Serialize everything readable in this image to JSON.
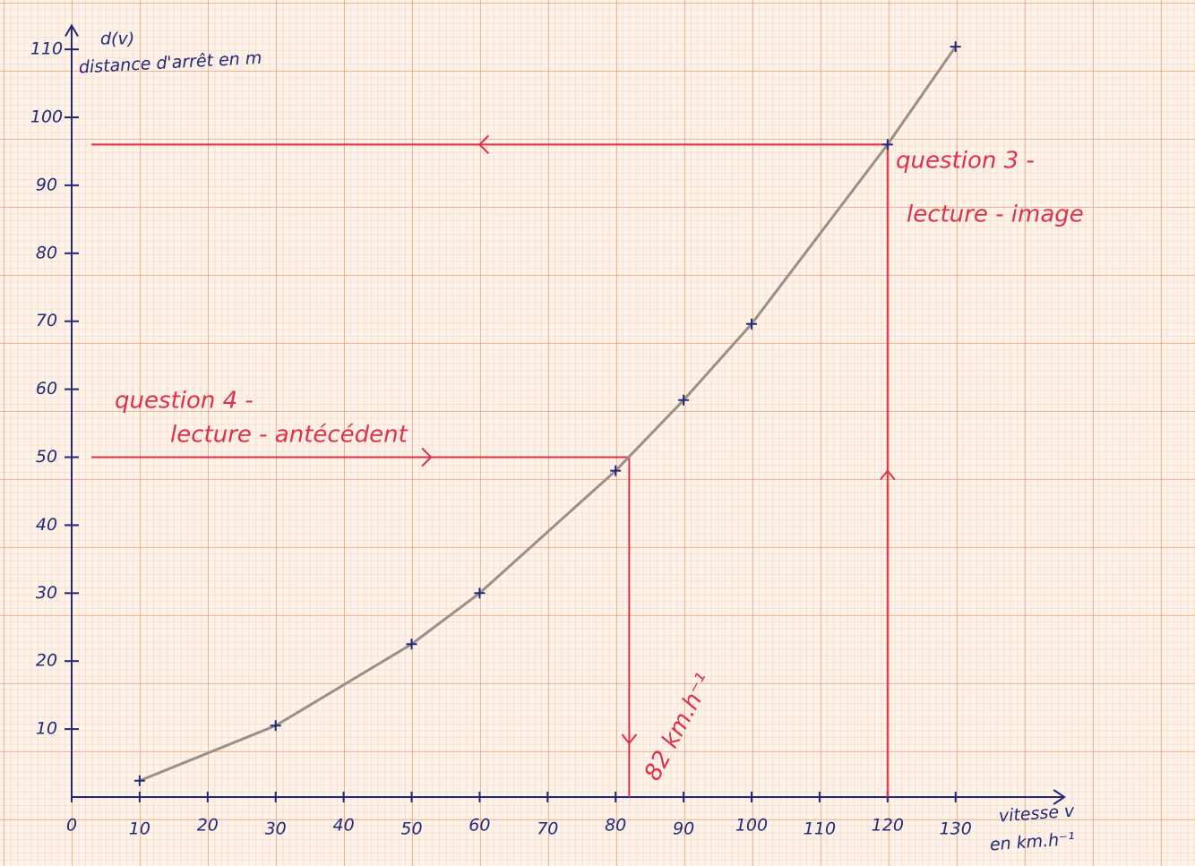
{
  "chart_data": {
    "type": "line",
    "y_label": [
      "d(v)",
      "distance d'arrêt en m"
    ],
    "x_label": [
      "vitesse v",
      "en km.h⁻¹"
    ],
    "x": [
      10,
      30,
      50,
      60,
      80,
      90,
      100,
      120,
      130
    ],
    "values": [
      2.4,
      10.5,
      22.5,
      30,
      48,
      58.4,
      69.6,
      96,
      110.4
    ],
    "color": "#9a8f8a",
    "marker_color": "#1f2a7a",
    "xlim": [
      0,
      146
    ],
    "ylim": [
      0,
      113.5
    ],
    "xticks": [
      0,
      10,
      20,
      30,
      40,
      50,
      60,
      70,
      80,
      90,
      100,
      110,
      120,
      130
    ],
    "yticks": [
      10,
      20,
      30,
      40,
      50,
      60,
      70,
      80,
      90,
      100,
      110
    ],
    "guides": [
      {
        "x": 120,
        "y": 96,
        "label": [
          "question 3 -",
          "lecture - image"
        ]
      },
      {
        "x": 82,
        "y": 50,
        "label": [
          "question 4 -",
          "lecture - antécédent"
        ],
        "x_label": "82 km.h⁻¹"
      }
    ],
    "guide_color": "#e0304a"
  }
}
